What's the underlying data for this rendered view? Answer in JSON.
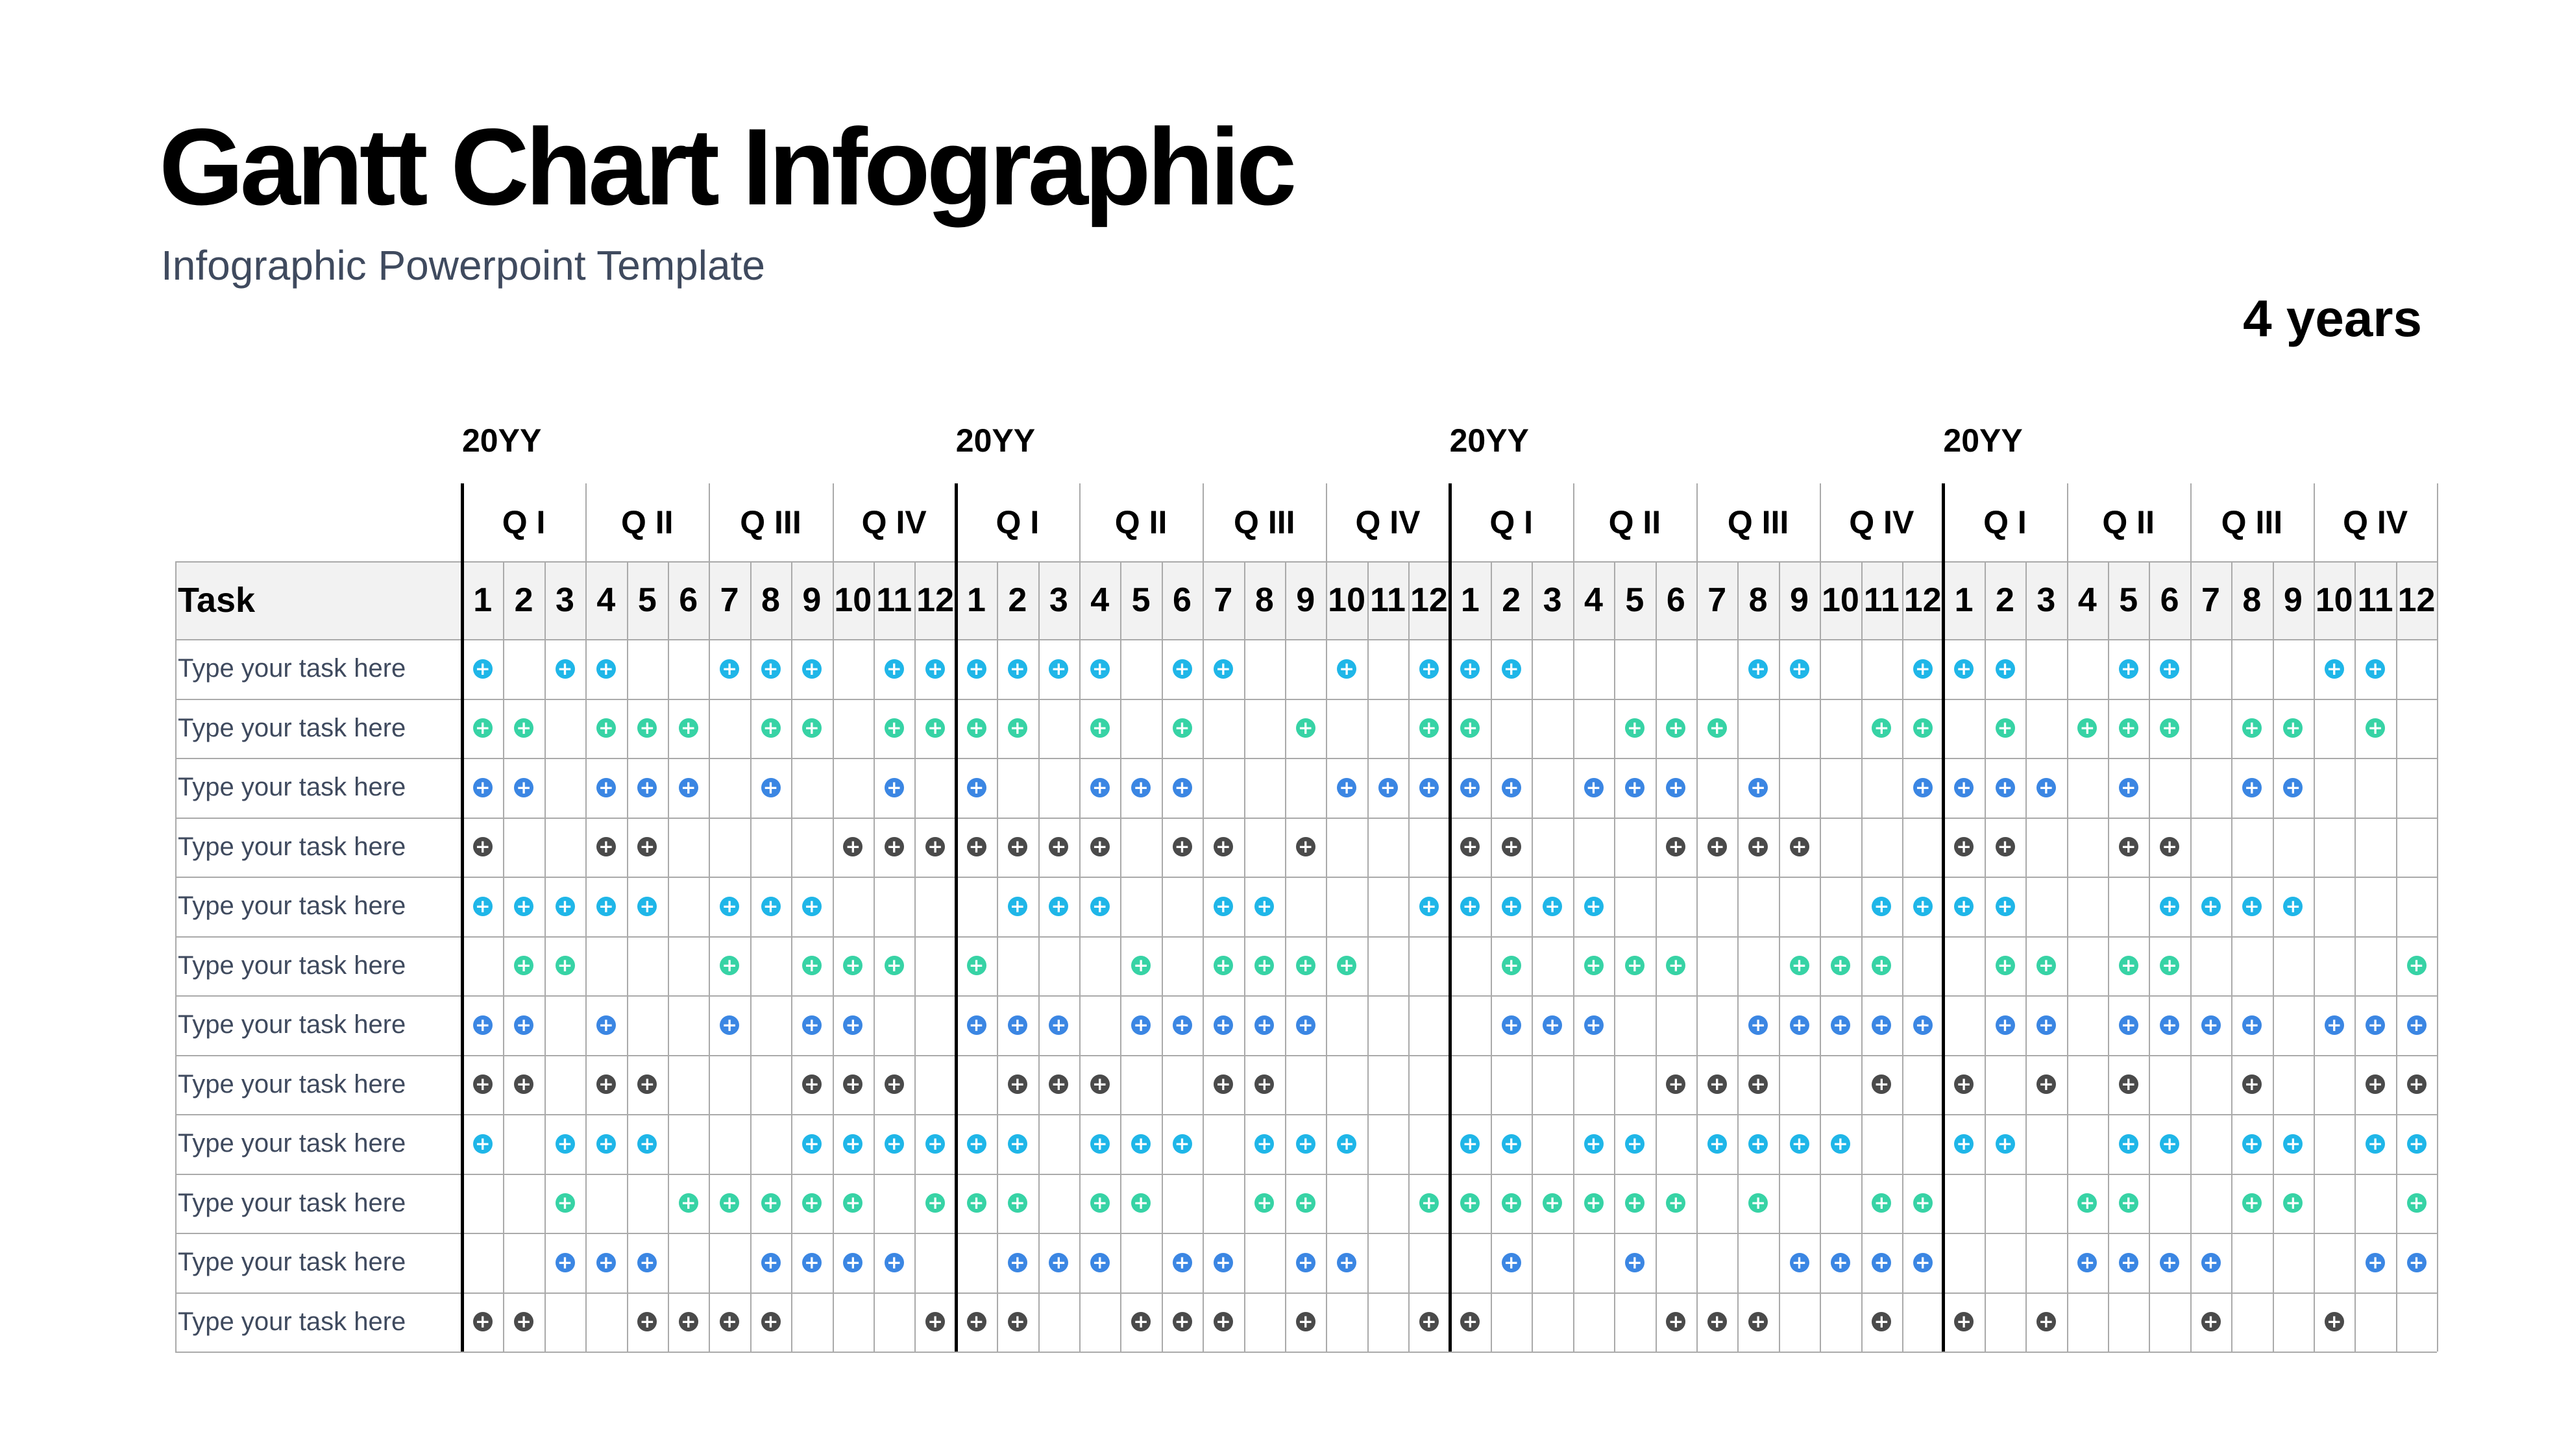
{
  "title": "Gantt Chart Infographic",
  "subtitle": "Infographic Powerpoint Template",
  "duration_label": "4 years",
  "task_header": "Task",
  "years": [
    "20YY",
    "20YY",
    "20YY",
    "20YY"
  ],
  "quarters": [
    "Q I",
    "Q II",
    "Q III",
    "Q IV"
  ],
  "months": [
    "1",
    "2",
    "3",
    "4",
    "5",
    "6",
    "7",
    "8",
    "9",
    "10",
    "11",
    "12"
  ],
  "dot_glyph": "+",
  "icon": "plus-circle-icon",
  "row_colors": [
    "#1fb6e8",
    "#37d3a5",
    "#3b86e3",
    "#4a4a4a",
    "#1fb6e8",
    "#37d3a5",
    "#3b86e3",
    "#4a4a4a",
    "#1fb6e8",
    "#37d3a5",
    "#3b86e3",
    "#4a4a4a"
  ],
  "tasks": [
    {
      "label": "Type your task here",
      "marks": [
        1,
        0,
        1,
        1,
        0,
        0,
        1,
        1,
        1,
        0,
        1,
        1,
        1,
        1,
        1,
        1,
        0,
        1,
        1,
        0,
        0,
        1,
        0,
        1,
        1,
        1,
        0,
        0,
        0,
        0,
        0,
        1,
        1,
        0,
        0,
        1,
        1,
        1,
        0,
        0,
        1,
        1,
        0,
        0,
        0,
        1,
        1,
        0
      ]
    },
    {
      "label": "Type your task here",
      "marks": [
        1,
        1,
        0,
        1,
        1,
        1,
        0,
        1,
        1,
        0,
        1,
        1,
        1,
        1,
        0,
        1,
        0,
        1,
        0,
        0,
        1,
        0,
        0,
        1,
        1,
        0,
        0,
        0,
        1,
        1,
        1,
        0,
        0,
        0,
        1,
        1,
        0,
        1,
        0,
        1,
        1,
        1,
        0,
        1,
        1,
        0,
        1,
        0
      ]
    },
    {
      "label": "Type your task here",
      "marks": [
        1,
        1,
        0,
        1,
        1,
        1,
        0,
        1,
        0,
        0,
        1,
        0,
        1,
        0,
        0,
        1,
        1,
        1,
        0,
        0,
        0,
        1,
        1,
        1,
        1,
        1,
        0,
        1,
        1,
        1,
        0,
        1,
        0,
        0,
        0,
        1,
        1,
        1,
        1,
        0,
        1,
        0,
        0,
        1,
        1,
        0,
        0,
        0
      ]
    },
    {
      "label": "Type your task here",
      "marks": [
        1,
        0,
        0,
        1,
        1,
        0,
        0,
        0,
        0,
        1,
        1,
        1,
        1,
        1,
        1,
        1,
        0,
        1,
        1,
        0,
        1,
        0,
        0,
        0,
        1,
        1,
        0,
        0,
        0,
        1,
        1,
        1,
        1,
        0,
        0,
        0,
        1,
        1,
        0,
        0,
        1,
        1,
        0,
        0,
        0,
        0,
        0,
        0
      ]
    },
    {
      "label": "Type your task here",
      "marks": [
        1,
        1,
        1,
        1,
        1,
        0,
        1,
        1,
        1,
        0,
        0,
        0,
        0,
        1,
        1,
        1,
        0,
        0,
        1,
        1,
        0,
        0,
        0,
        1,
        1,
        1,
        1,
        1,
        0,
        0,
        0,
        0,
        0,
        0,
        1,
        1,
        1,
        1,
        0,
        0,
        0,
        1,
        1,
        1,
        1,
        0,
        0,
        0
      ]
    },
    {
      "label": "Type your task here",
      "marks": [
        0,
        1,
        1,
        0,
        0,
        0,
        1,
        0,
        1,
        1,
        1,
        0,
        1,
        0,
        0,
        0,
        1,
        0,
        1,
        1,
        1,
        1,
        0,
        0,
        0,
        1,
        0,
        1,
        1,
        1,
        0,
        0,
        1,
        1,
        1,
        0,
        0,
        1,
        1,
        0,
        1,
        1,
        0,
        0,
        0,
        0,
        0,
        1
      ]
    },
    {
      "label": "Type your task here",
      "marks": [
        1,
        1,
        0,
        1,
        0,
        0,
        1,
        0,
        1,
        1,
        0,
        0,
        1,
        1,
        1,
        0,
        1,
        1,
        1,
        1,
        1,
        0,
        0,
        0,
        0,
        1,
        1,
        1,
        0,
        0,
        0,
        1,
        1,
        1,
        1,
        1,
        0,
        1,
        1,
        0,
        1,
        1,
        1,
        1,
        0,
        1,
        1,
        1
      ]
    },
    {
      "label": "Type your task here",
      "marks": [
        1,
        1,
        0,
        1,
        1,
        0,
        0,
        0,
        1,
        1,
        1,
        0,
        0,
        1,
        1,
        1,
        0,
        0,
        1,
        1,
        0,
        0,
        0,
        0,
        0,
        0,
        0,
        0,
        0,
        1,
        1,
        1,
        0,
        0,
        1,
        0,
        1,
        0,
        1,
        0,
        1,
        0,
        0,
        1,
        0,
        0,
        1,
        1
      ]
    },
    {
      "label": "Type your task here",
      "marks": [
        1,
        0,
        1,
        1,
        1,
        0,
        0,
        0,
        1,
        1,
        1,
        1,
        1,
        1,
        0,
        1,
        1,
        1,
        0,
        1,
        1,
        1,
        0,
        0,
        1,
        1,
        0,
        1,
        1,
        0,
        1,
        1,
        1,
        1,
        0,
        0,
        1,
        1,
        0,
        0,
        1,
        1,
        0,
        1,
        1,
        0,
        1,
        1
      ]
    },
    {
      "label": "Type your task here",
      "marks": [
        0,
        0,
        1,
        0,
        0,
        1,
        1,
        1,
        1,
        1,
        0,
        1,
        1,
        1,
        0,
        1,
        1,
        0,
        0,
        1,
        1,
        0,
        0,
        1,
        1,
        1,
        1,
        1,
        1,
        1,
        0,
        1,
        0,
        0,
        1,
        1,
        0,
        0,
        0,
        1,
        1,
        0,
        0,
        1,
        1,
        0,
        0,
        1
      ]
    },
    {
      "label": "Type your task here",
      "marks": [
        0,
        0,
        1,
        1,
        1,
        0,
        0,
        1,
        1,
        1,
        1,
        0,
        0,
        1,
        1,
        1,
        0,
        1,
        1,
        0,
        1,
        1,
        0,
        0,
        0,
        1,
        0,
        0,
        1,
        0,
        0,
        0,
        1,
        1,
        1,
        1,
        0,
        0,
        0,
        1,
        1,
        1,
        1,
        0,
        0,
        0,
        1,
        1
      ]
    },
    {
      "label": "Type your task here",
      "marks": [
        1,
        1,
        0,
        0,
        1,
        1,
        1,
        1,
        0,
        0,
        0,
        1,
        1,
        1,
        0,
        0,
        1,
        1,
        1,
        0,
        1,
        0,
        0,
        1,
        1,
        0,
        0,
        0,
        0,
        1,
        1,
        1,
        0,
        0,
        1,
        0,
        1,
        0,
        1,
        0,
        0,
        0,
        1,
        0,
        0,
        1,
        0,
        0
      ]
    }
  ]
}
